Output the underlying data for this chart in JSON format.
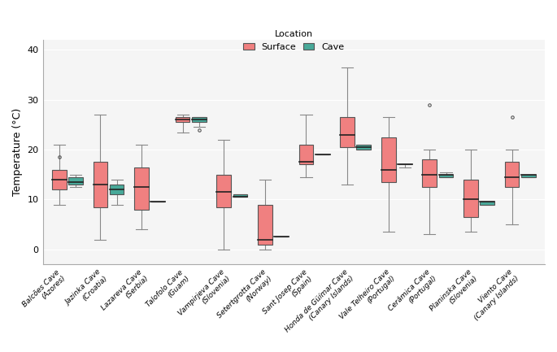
{
  "ylabel": "Temperature (°C)",
  "ylim": [
    -3,
    42
  ],
  "yticks": [
    0,
    10,
    20,
    30,
    40
  ],
  "legend_title": "Location",
  "surface_color": "#F08080",
  "cave_color": "#48A999",
  "surface_label": "Surface",
  "cave_label": "Cave",
  "box_width": 0.35,
  "locations": [
    "Balcões Cave\n(Azores)",
    "Jazinka Cave\n(Croatia)",
    "Lazareva Cave\n(Serbia)",
    "Talofolo Cave\n(Guam)",
    "Vampirjeva Cave\n(Slovenia)",
    "Setertgrotta Cave\n(Norway)",
    "Sant Josep Cave\n(Spain)",
    "Honda de Güímar Cave\n(Canary Islands)",
    "Vale Telheiro Cave\n(Portugal)",
    "Cerâmica Cave\n(Portugal)",
    "Planinska Cave\n(Slovenia)",
    "Viento Cave\n(Canary Islands)"
  ],
  "surface": [
    {
      "whislo": 9.0,
      "q1": 12.0,
      "med": 14.0,
      "q3": 16.0,
      "whishi": 21.0,
      "fliers_high": [
        18.5
      ],
      "fliers_low": []
    },
    {
      "whislo": 2.0,
      "q1": 8.5,
      "med": 13.0,
      "q3": 17.5,
      "whishi": 27.0,
      "fliers_high": [],
      "fliers_low": []
    },
    {
      "whislo": 4.0,
      "q1": 8.0,
      "med": 12.5,
      "q3": 16.5,
      "whishi": 21.0,
      "fliers_high": [],
      "fliers_low": []
    },
    {
      "whislo": 23.5,
      "q1": 25.5,
      "med": 26.0,
      "q3": 26.5,
      "whishi": 27.0,
      "fliers_high": [],
      "fliers_low": []
    },
    {
      "whislo": 0.0,
      "q1": 8.5,
      "med": 11.5,
      "q3": 15.0,
      "whishi": 22.0,
      "fliers_high": [],
      "fliers_low": []
    },
    {
      "whislo": 0.0,
      "q1": 1.0,
      "med": 2.0,
      "q3": 9.0,
      "whishi": 14.0,
      "fliers_high": [],
      "fliers_low": []
    },
    {
      "whislo": 14.5,
      "q1": 17.0,
      "med": 17.5,
      "q3": 21.0,
      "whishi": 27.0,
      "fliers_high": [],
      "fliers_low": []
    },
    {
      "whislo": 13.0,
      "q1": 20.5,
      "med": 23.0,
      "q3": 26.5,
      "whishi": 36.5,
      "fliers_high": [],
      "fliers_low": []
    },
    {
      "whislo": 3.5,
      "q1": 13.5,
      "med": 16.0,
      "q3": 22.5,
      "whishi": 26.5,
      "fliers_high": [],
      "fliers_low": []
    },
    {
      "whislo": 3.0,
      "q1": 12.5,
      "med": 15.0,
      "q3": 18.0,
      "whishi": 20.0,
      "fliers_high": [
        29.0
      ],
      "fliers_low": []
    },
    {
      "whislo": 3.5,
      "q1": 6.5,
      "med": 10.0,
      "q3": 14.0,
      "whishi": 20.0,
      "fliers_high": [],
      "fliers_low": []
    },
    {
      "whislo": 5.0,
      "q1": 12.5,
      "med": 14.5,
      "q3": 17.5,
      "whishi": 20.0,
      "fliers_high": [
        26.5
      ],
      "fliers_low": []
    }
  ],
  "cave": [
    {
      "whislo": 12.5,
      "q1": 13.0,
      "med": 13.5,
      "q3": 14.5,
      "whishi": 15.0,
      "fliers_high": [],
      "fliers_low": []
    },
    {
      "whislo": 9.0,
      "q1": 11.0,
      "med": 12.0,
      "q3": 13.0,
      "whishi": 14.0,
      "fliers_high": [],
      "fliers_low": []
    },
    {
      "whislo": 9.5,
      "q1": 9.5,
      "med": 9.5,
      "q3": 9.5,
      "whishi": 9.5,
      "fliers_high": [],
      "fliers_low": []
    },
    {
      "whislo": 24.5,
      "q1": 25.5,
      "med": 26.0,
      "q3": 26.5,
      "whishi": 26.5,
      "fliers_high": [
        24.0
      ],
      "fliers_low": []
    },
    {
      "whislo": 10.5,
      "q1": 10.5,
      "med": 10.5,
      "q3": 11.0,
      "whishi": 11.0,
      "fliers_high": [],
      "fliers_low": []
    },
    {
      "whislo": 2.5,
      "q1": 2.5,
      "med": 2.5,
      "q3": 2.5,
      "whishi": 2.5,
      "fliers_high": [],
      "fliers_low": []
    },
    {
      "whislo": 19.0,
      "q1": 19.0,
      "med": 19.0,
      "q3": 19.0,
      "whishi": 19.0,
      "fliers_high": [],
      "fliers_low": []
    },
    {
      "whislo": 20.0,
      "q1": 20.0,
      "med": 20.5,
      "q3": 21.0,
      "whishi": 21.0,
      "fliers_high": [],
      "fliers_low": []
    },
    {
      "whislo": 16.5,
      "q1": 17.0,
      "med": 17.0,
      "q3": 17.0,
      "whishi": 17.0,
      "fliers_high": [],
      "fliers_low": []
    },
    {
      "whislo": 14.5,
      "q1": 14.5,
      "med": 15.0,
      "q3": 15.0,
      "whishi": 15.5,
      "fliers_high": [],
      "fliers_low": []
    },
    {
      "whislo": 9.0,
      "q1": 9.0,
      "med": 9.5,
      "q3": 9.5,
      "whishi": 9.5,
      "fliers_high": [],
      "fliers_low": []
    },
    {
      "whislo": 14.5,
      "q1": 14.5,
      "med": 15.0,
      "q3": 15.0,
      "whishi": 15.0,
      "fliers_high": [],
      "fliers_low": []
    }
  ],
  "background_color": "#f5f5f5",
  "grid_color": "#ffffff"
}
